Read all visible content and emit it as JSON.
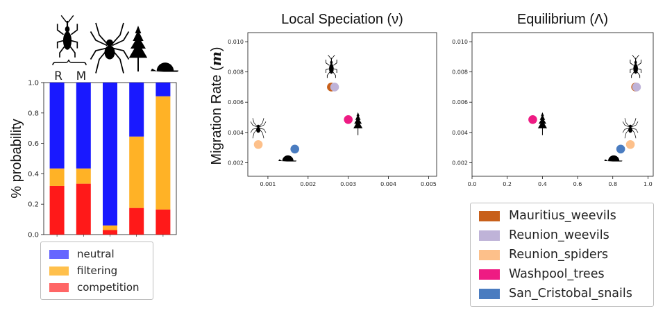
{
  "colors": {
    "neutral": "#0000ff",
    "filtering": "#ffa500",
    "competition": "#ff0000",
    "silhouette": "#000000",
    "Mauritius_weevils": "#c8601a",
    "Reunion_weevils": "#bfb3d8",
    "Reunion_spiders": "#fdc08a",
    "Washpool_trees": "#ee1b83",
    "San_Cristobal_snails": "#4a7cc0"
  },
  "icons": {
    "bar_icons": [
      "weevil-icon",
      "spider-icon",
      "tree-icon",
      "snail-icon"
    ],
    "bracket_labels": [
      "R",
      "M"
    ]
  },
  "chart_data": [
    {
      "type": "bar",
      "stacked": true,
      "ylabel": "% probability",
      "ylim": [
        0,
        1.0
      ],
      "yticks": [
        "0.0",
        "0.2",
        "0.4",
        "0.6",
        "0.8",
        "1.0"
      ],
      "categories": [
        "",
        "",
        "",
        "",
        ""
      ],
      "series": [
        {
          "name": "competition",
          "color_key": "competition",
          "values": [
            0.32,
            0.335,
            0.03,
            0.175,
            0.165
          ]
        },
        {
          "name": "filtering",
          "color_key": "filtering",
          "values": [
            0.115,
            0.1,
            0.03,
            0.47,
            0.745
          ]
        },
        {
          "name": "neutral",
          "color_key": "neutral",
          "values": [
            0.565,
            0.565,
            0.94,
            0.355,
            0.09
          ]
        }
      ],
      "legend": {
        "placement": "bottom",
        "entries": [
          "neutral",
          "filtering",
          "competition"
        ]
      }
    },
    {
      "type": "scatter",
      "title": "Local Speciation (ν)",
      "ylabel": "Migration Rate",
      "ylabel_symbol": "m",
      "xlim": [
        0.0005,
        0.0052
      ],
      "ylim": [
        0.0011,
        0.0106
      ],
      "xticks": [
        "0.001",
        "0.002",
        "0.003",
        "0.004",
        "0.005"
      ],
      "yticks": [
        "0.002",
        "0.004",
        "0.006",
        "0.008",
        "0.010"
      ],
      "points": [
        {
          "series": "Mauritius_weevils",
          "x": 0.00258,
          "y": 0.007,
          "icon": "weevil-icon"
        },
        {
          "series": "Reunion_weevils",
          "x": 0.00266,
          "y": 0.007,
          "icon": null
        },
        {
          "series": "Reunion_spiders",
          "x": 0.00076,
          "y": 0.0032,
          "icon": "spider-icon"
        },
        {
          "series": "Washpool_trees",
          "x": 0.003,
          "y": 0.00485,
          "icon": "tree-icon"
        },
        {
          "series": "San_Cristobal_snails",
          "x": 0.00167,
          "y": 0.0029,
          "icon": "snail-icon"
        }
      ]
    },
    {
      "type": "scatter",
      "title": "Equilibrium (Λ)",
      "xlim": [
        0.0,
        1.03
      ],
      "ylim": [
        0.0011,
        0.0106
      ],
      "xticks": [
        "0.0",
        "0.2",
        "0.4",
        "0.6",
        "0.8",
        "1.0"
      ],
      "yticks": [
        "0.002",
        "0.004",
        "0.006",
        "0.008",
        "0.010"
      ],
      "points": [
        {
          "series": "Mauritius_weevils",
          "x": 0.93,
          "y": 0.007,
          "icon": "weevil-icon"
        },
        {
          "series": "Reunion_weevils",
          "x": 0.935,
          "y": 0.007,
          "icon": null
        },
        {
          "series": "Reunion_spiders",
          "x": 0.9,
          "y": 0.0032,
          "icon": "spider-icon"
        },
        {
          "series": "Washpool_trees",
          "x": 0.345,
          "y": 0.00485,
          "icon": "tree-icon"
        },
        {
          "series": "San_Cristobal_snails",
          "x": 0.845,
          "y": 0.0029,
          "icon": "snail-icon"
        }
      ]
    }
  ],
  "legend2": {
    "entries": [
      "Mauritius_weevils",
      "Reunion_weevils",
      "Reunion_spiders",
      "Washpool_trees",
      "San_Cristobal_snails"
    ]
  }
}
